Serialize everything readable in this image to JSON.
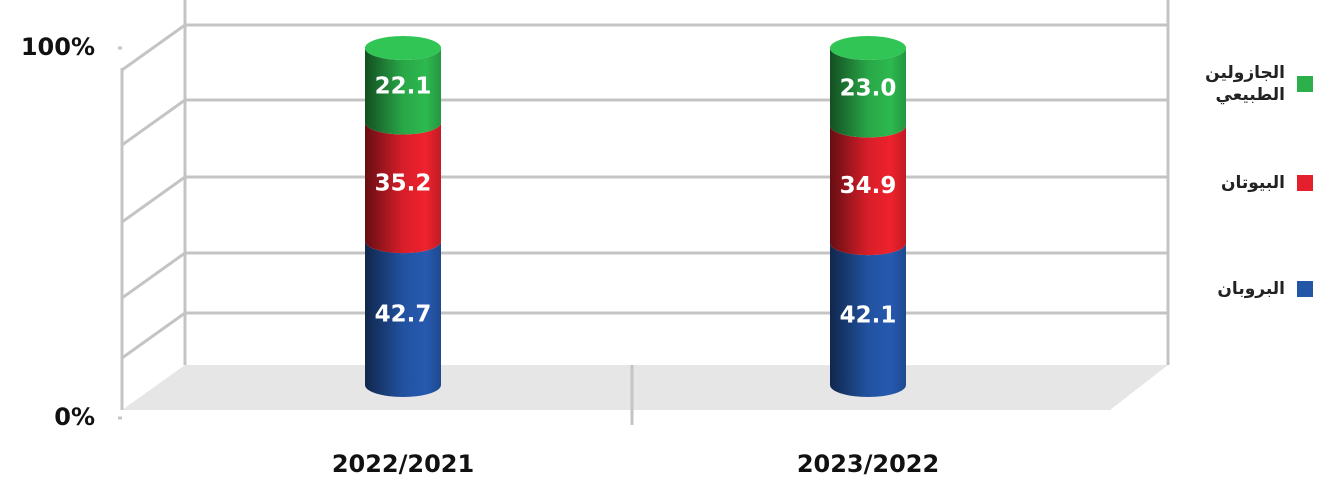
{
  "chart_data": {
    "type": "bar",
    "stacked": true,
    "categories": [
      "2022/2021",
      "2023/2022"
    ],
    "series": [
      {
        "name": "البروبان",
        "color": "#2456a8",
        "values": [
          42.7,
          42.1
        ]
      },
      {
        "name": "البيوتان",
        "color": "#e3202b",
        "values": [
          35.2,
          34.9
        ]
      },
      {
        "name": "الجازولين الطبيعي",
        "color": "#2bb04b",
        "values": [
          22.1,
          23.0
        ],
        "value_labels": [
          "22.1",
          "23.0"
        ]
      }
    ],
    "ylim": [
      0,
      100
    ],
    "yticks": [
      {
        "value": 0,
        "label": "0%"
      },
      {
        "value": 100,
        "label": "100%"
      }
    ],
    "legend": "right"
  }
}
